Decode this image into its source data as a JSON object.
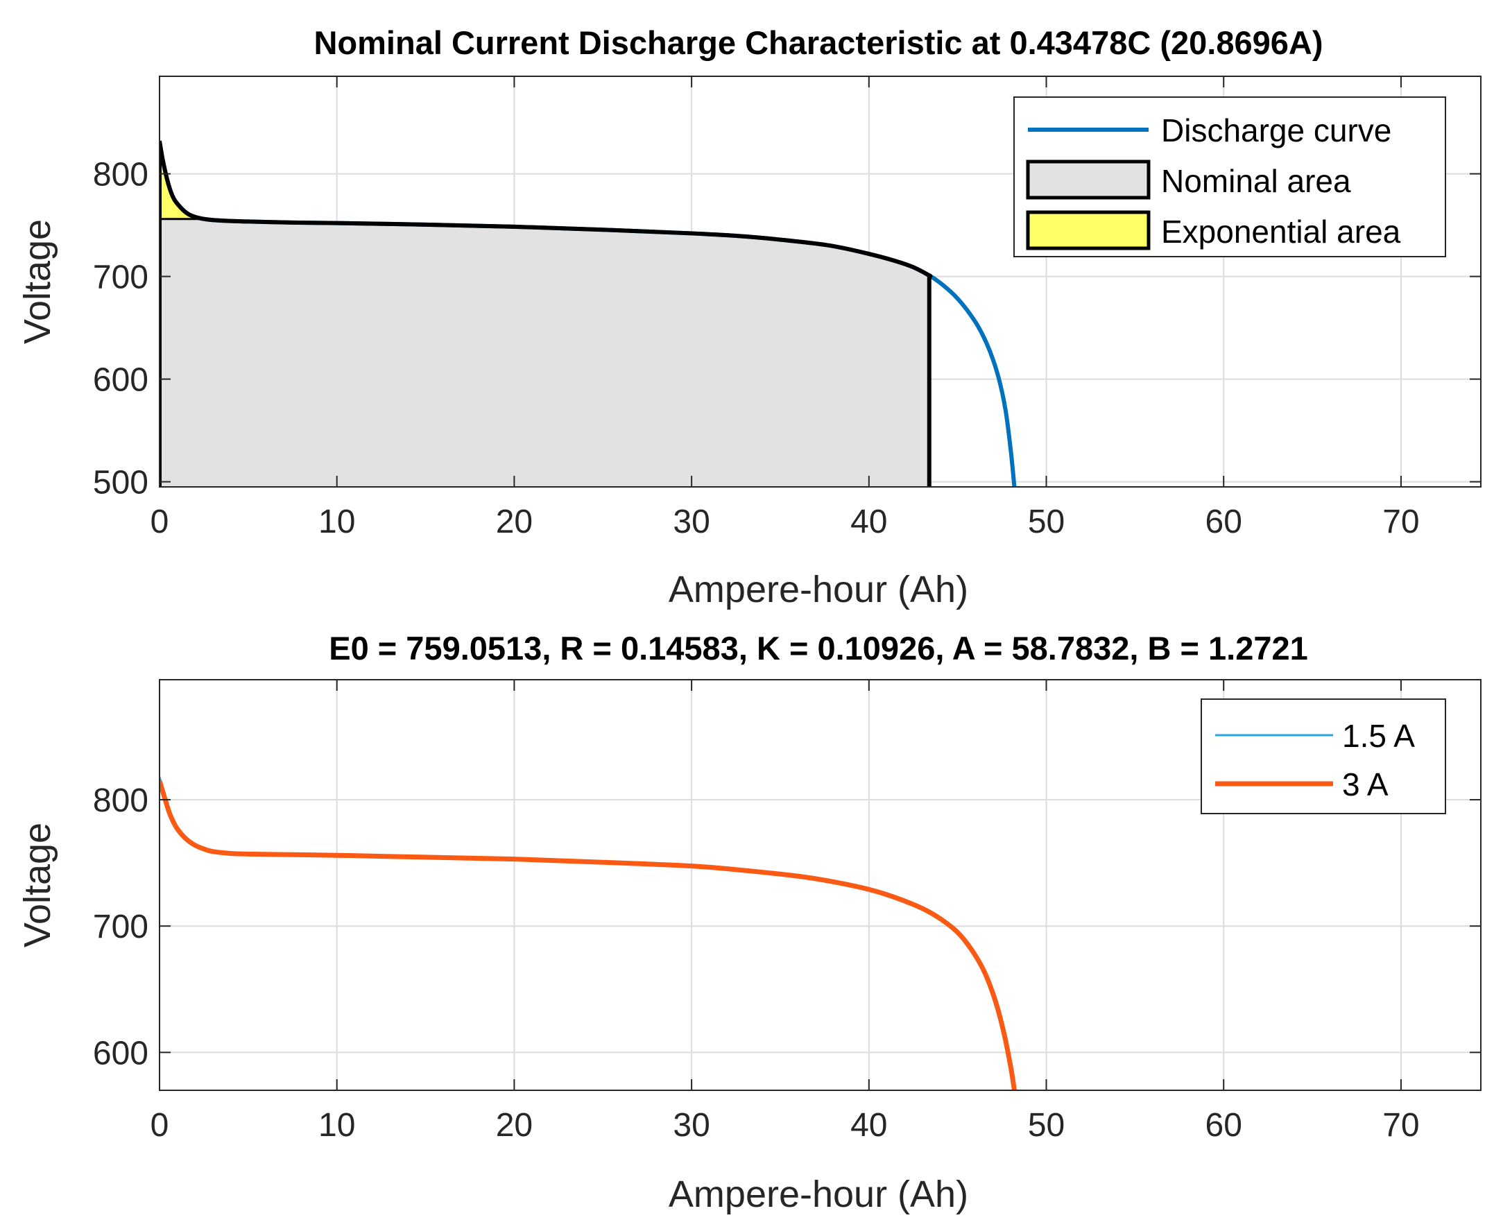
{
  "chart_data": [
    {
      "type": "line",
      "title": "Nominal Current Discharge Characteristic at 0.43478C (20.8696A)",
      "xlabel": "Ampere-hour (Ah)",
      "ylabel": "Voltage",
      "xlim": [
        0,
        74.5
      ],
      "ylim": [
        495,
        895
      ],
      "xticks": [
        0,
        10,
        20,
        30,
        40,
        50,
        60,
        70
      ],
      "yticks": [
        500,
        600,
        700,
        800
      ],
      "grid": true,
      "legend_position": "top-right",
      "legend": [
        "Discharge curve",
        "Nominal area",
        "Exponential area"
      ],
      "colors": {
        "discharge": "#0072BD",
        "nominal_fill": "#e2e2e2",
        "exponential_fill": "#ffff66",
        "outline": "#000000"
      },
      "series": [
        {
          "name": "Discharge curve",
          "x": [
            0,
            0.2,
            0.5,
            0.8,
            1.2,
            1.6,
            2.0,
            2.5,
            3,
            4,
            5,
            7.5,
            10,
            15,
            20,
            25,
            30,
            33,
            36,
            38,
            40,
            41.5,
            42.5,
            43.4,
            44,
            44.8,
            45.5,
            46.2,
            46.8,
            47.3,
            47.7,
            48.0,
            48.2
          ],
          "y": [
            832,
            812,
            790,
            776,
            767,
            761,
            758,
            756,
            755,
            754,
            753.5,
            752.5,
            752,
            750.5,
            748.5,
            745.5,
            742,
            739,
            734,
            729.5,
            722,
            715,
            709,
            701,
            694,
            682,
            668,
            650,
            628,
            602,
            570,
            530,
            495
          ]
        }
      ],
      "nominal_area": {
        "x_end": 43.4,
        "base_voltage": 495
      },
      "exponential_area": {
        "x_end": 2.5,
        "voltage_level": 756
      }
    },
    {
      "type": "line",
      "title": "E0 = 759.0513, R = 0.14583, K = 0.10926, A = 58.7832, B = 1.2721",
      "xlabel": "Ampere-hour (Ah)",
      "ylabel": "Voltage",
      "xlim": [
        0,
        74.5
      ],
      "ylim": [
        570,
        895
      ],
      "xticks": [
        0,
        10,
        20,
        30,
        40,
        50,
        60,
        70
      ],
      "yticks": [
        600,
        700,
        800
      ],
      "grid": true,
      "legend_position": "top-right",
      "legend": [
        "1.5 A",
        "3 A"
      ],
      "colors": {
        "s1": "#2aa4e0",
        "s2": "#fa5a14"
      },
      "series": [
        {
          "name": "1.5 A",
          "x": [
            0,
            0.3,
            0.6,
            1.0,
            1.5,
            2.0,
            2.5,
            3,
            4,
            5,
            7.5,
            10,
            15,
            20,
            25,
            30,
            33,
            36,
            38,
            40,
            41.5,
            43,
            44,
            45,
            45.8,
            46.5,
            47.1,
            47.6,
            48.0,
            48.2
          ],
          "y": [
            818,
            803,
            789,
            778,
            770,
            765,
            762,
            760,
            758,
            757.5,
            757,
            756.5,
            755,
            753.5,
            751,
            748,
            744.5,
            740,
            735.5,
            729.5,
            723,
            715,
            707,
            696,
            682,
            665,
            643,
            617,
            589,
            570
          ]
        },
        {
          "name": "3 A",
          "x": [
            0,
            0.3,
            0.6,
            1.0,
            1.5,
            2.0,
            2.5,
            3,
            4,
            5,
            7.5,
            10,
            15,
            20,
            25,
            30,
            33,
            36,
            38,
            40,
            41.5,
            43,
            44,
            45,
            45.8,
            46.5,
            47.1,
            47.6,
            48.0,
            48.2
          ],
          "y": [
            815,
            801,
            788,
            777,
            769,
            764,
            761,
            759,
            757.5,
            757,
            756.5,
            756,
            754.5,
            753,
            750.5,
            747.5,
            744,
            739.5,
            735,
            729,
            722.5,
            714,
            706,
            695,
            681,
            664,
            642,
            616,
            588,
            570
          ]
        }
      ]
    }
  ]
}
